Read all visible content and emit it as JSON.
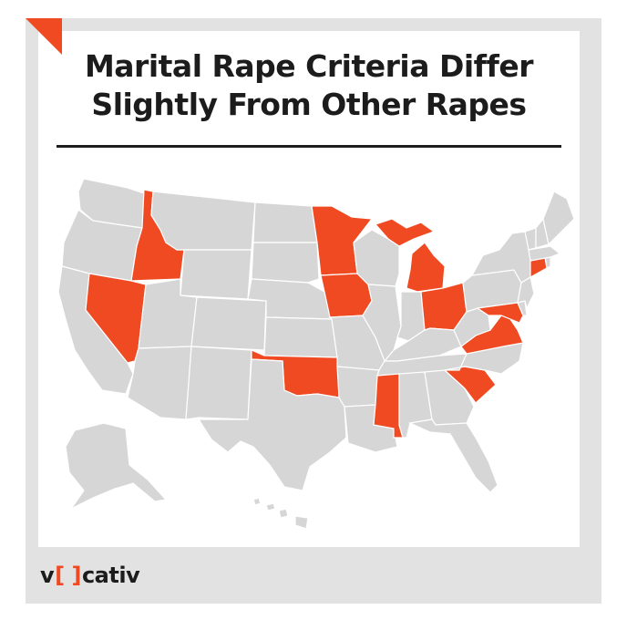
{
  "title_line1": "Marital Rape Criteria Differ",
  "title_line2": "Slightly From Other Rapes",
  "logo": {
    "left": "v",
    "bracket": "[ ]",
    "right": "cativ"
  },
  "colors": {
    "highlight": "#f04a22",
    "base_state": "#d6d6d6",
    "frame": "#e2e2e2",
    "text": "#1c1c1c"
  },
  "highlighted_states": [
    "Idaho",
    "Nevada",
    "Minnesota",
    "Iowa",
    "Michigan",
    "Ohio",
    "Oklahoma",
    "Mississippi",
    "South Carolina",
    "Virginia",
    "Maryland",
    "Connecticut"
  ]
}
